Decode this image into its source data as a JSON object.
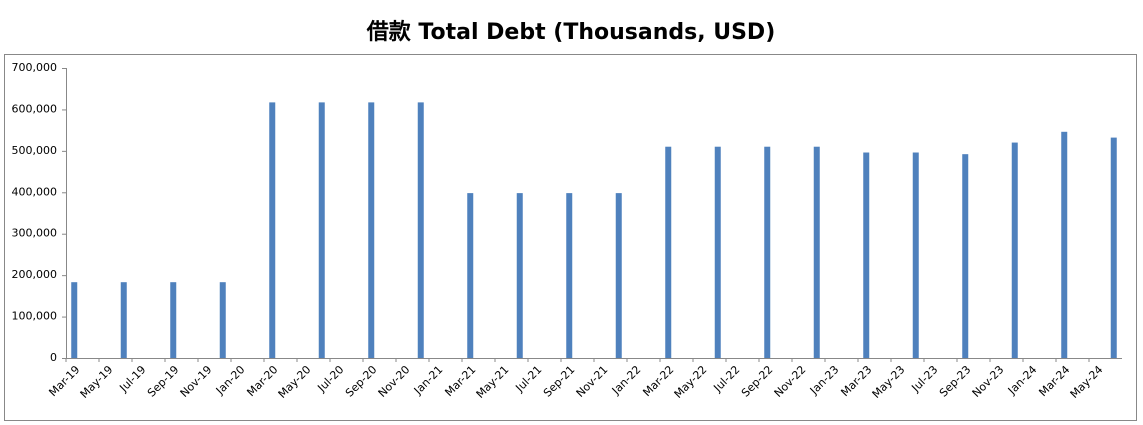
{
  "chart_data": {
    "type": "bar",
    "title": "借款 Total Debt (Thousands, USD)",
    "categories": [
      "Mar-19",
      null,
      "May-19",
      null,
      "Jul-19",
      null,
      "Sep-19",
      null,
      "Nov-19",
      null,
      "Jan-20",
      null,
      "Mar-20",
      null,
      "May-20",
      null,
      "Jul-20",
      null,
      "Sep-20",
      null,
      "Nov-20",
      null,
      "Jan-21",
      null,
      "Mar-21",
      null,
      "May-21",
      null,
      "Jul-21",
      null,
      "Sep-21",
      null,
      "Nov-21",
      null,
      "Jan-22",
      null,
      "Mar-22",
      null,
      "May-22",
      null,
      "Jul-22",
      null,
      "Sep-22",
      null,
      "Nov-22",
      null,
      "Jan-23",
      null,
      "Mar-23",
      null,
      "May-23",
      null,
      "Jul-23",
      null,
      "Sep-23",
      null,
      "Nov-23",
      null,
      "Jan-24",
      null,
      "Mar-24",
      null,
      "May-24",
      null
    ],
    "values": [
      183000,
      null,
      null,
      183000,
      null,
      null,
      183000,
      null,
      null,
      183000,
      null,
      null,
      617000,
      null,
      null,
      617000,
      null,
      null,
      617000,
      null,
      null,
      617000,
      null,
      null,
      398000,
      null,
      null,
      398000,
      null,
      null,
      398000,
      null,
      null,
      398000,
      null,
      null,
      510000,
      null,
      null,
      510000,
      null,
      null,
      510000,
      null,
      null,
      510000,
      null,
      null,
      496000,
      null,
      null,
      496000,
      null,
      null,
      492000,
      null,
      null,
      520000,
      null,
      null,
      546000,
      null,
      null,
      532000
    ],
    "color": "#4f81bd",
    "ylim": [
      0,
      700000
    ],
    "yticks": [
      0,
      {
        "value": 100000,
        "label": "100,000"
      },
      {
        "value": 200000,
        "label": "200,000"
      },
      {
        "value": 300000,
        "label": "300,000"
      },
      {
        "value": 400000,
        "label": "400,000"
      },
      {
        "value": 500000,
        "label": "500,000"
      },
      {
        "value": 600000,
        "label": "600,000"
      },
      {
        "value": 700000,
        "label": "700,000"
      }
    ],
    "grid": false
  }
}
